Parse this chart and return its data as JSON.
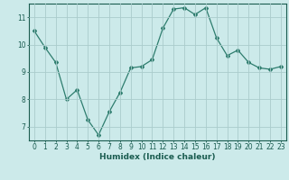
{
  "x": [
    0,
    1,
    2,
    3,
    4,
    5,
    6,
    7,
    8,
    9,
    10,
    11,
    12,
    13,
    14,
    15,
    16,
    17,
    18,
    19,
    20,
    21,
    22,
    23
  ],
  "y": [
    10.5,
    9.9,
    9.35,
    8.0,
    8.35,
    7.25,
    6.7,
    7.55,
    8.25,
    9.15,
    9.2,
    9.45,
    10.6,
    11.3,
    11.35,
    11.1,
    11.35,
    10.25,
    9.6,
    9.8,
    9.35,
    9.15,
    9.1,
    9.2
  ],
  "line_color": "#2e7d6e",
  "marker": "D",
  "marker_size": 2,
  "bg_color": "#cceaea",
  "grid_color": "#aacccc",
  "xlabel": "Humidex (Indice chaleur)",
  "ylim": [
    6.5,
    11.5
  ],
  "xlim": [
    -0.5,
    23.5
  ],
  "yticks": [
    7,
    8,
    9,
    10,
    11
  ],
  "xticks": [
    0,
    1,
    2,
    3,
    4,
    5,
    6,
    7,
    8,
    9,
    10,
    11,
    12,
    13,
    14,
    15,
    16,
    17,
    18,
    19,
    20,
    21,
    22,
    23
  ],
  "tick_color": "#1a5c50",
  "axis_color": "#1a5c50",
  "xlabel_fontsize": 6.5,
  "tick_fontsize": 5.5,
  "linewidth": 0.9
}
